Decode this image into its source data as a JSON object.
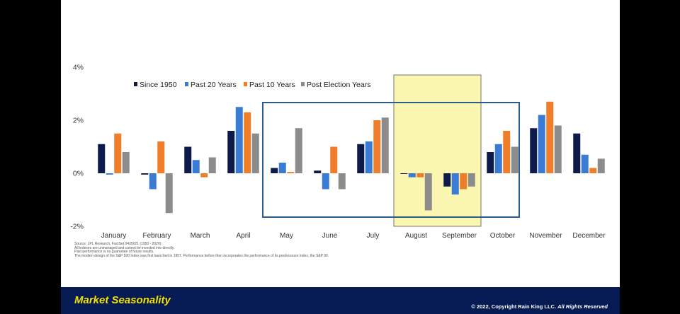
{
  "chart_data": {
    "type": "bar",
    "categories": [
      "January",
      "February",
      "March",
      "April",
      "May",
      "June",
      "July",
      "August",
      "September",
      "October",
      "November",
      "December"
    ],
    "series": [
      {
        "name": "Since 1950",
        "color": "#0d1a4a",
        "values": [
          1.1,
          -0.05,
          1.0,
          1.6,
          0.2,
          0.1,
          1.1,
          0.0,
          -0.5,
          0.8,
          1.7,
          1.5
        ]
      },
      {
        "name": "Past 20 Years",
        "color": "#3a7bd5",
        "values": [
          -0.05,
          -0.6,
          0.5,
          2.5,
          0.4,
          -0.6,
          1.2,
          -0.15,
          -0.8,
          1.1,
          2.2,
          0.7
        ]
      },
      {
        "name": "Past 10 Years",
        "color": "#ef7d2a",
        "values": [
          1.5,
          1.2,
          -0.15,
          2.3,
          0.05,
          1.0,
          2.0,
          -0.15,
          -0.6,
          1.6,
          2.7,
          0.2
        ]
      },
      {
        "name": "Post Election Years",
        "color": "#8c8c8c",
        "values": [
          0.8,
          -1.5,
          0.6,
          1.5,
          1.7,
          -0.6,
          2.1,
          -1.4,
          -0.5,
          1.0,
          1.8,
          0.55
        ]
      }
    ],
    "ylim": [
      -2,
      4
    ],
    "yticks": [
      4,
      2,
      0,
      -2
    ],
    "ytick_labels": [
      "4%",
      "2%",
      "0%",
      "-2%"
    ],
    "grid": false,
    "legend_position": "top",
    "highlight_box_months": [
      "May",
      "June",
      "July",
      "August",
      "September",
      "October"
    ],
    "highlight_shade_months": [
      "August",
      "September"
    ],
    "box_color": "#2a5d8c",
    "shade_color": "#fbf7b0"
  },
  "footnotes": [
    "Source: LPL Research, FactSet 04/29/21 (1950 - 2020)",
    "All indexes are unmanaged and cannot be invested into directly.",
    "Past performance is no guarantee of future results.",
    "The modern design of the S&P 500 Index was first launched in 1957. Performance before then incorporates the performance of its predecessor index, the S&P 90."
  ],
  "footer": {
    "title": "Market Seasonality",
    "copyright": "© 2022, Copyright Rain King LLC.",
    "rights": "All Rights Reserved",
    "bg_color": "#061b54",
    "title_color": "#f2e200"
  }
}
